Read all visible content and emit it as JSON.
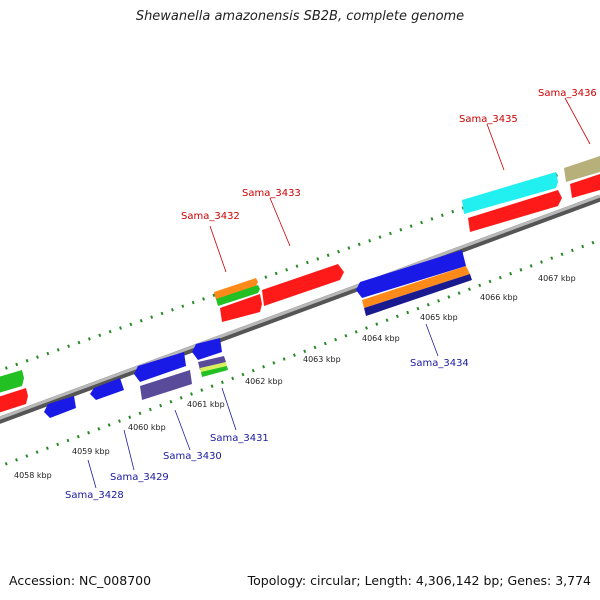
{
  "title": "Shewanella amazonensis SB2B, complete genome",
  "footer": {
    "accession": "Accession: NC_008700",
    "summary": "Topology: circular; Length: 4,306,142 bp; Genes: 3,774"
  },
  "kbp_labels": [
    "4058 kbp",
    "4059 kbp",
    "4060 kbp",
    "4061 kbp",
    "4062 kbp",
    "4063 kbp",
    "4064 kbp",
    "4065 kbp",
    "4066 kbp",
    "4067 kbp"
  ],
  "forward_genes": [
    "Sama_3432",
    "Sama_3433",
    "Sama_3435",
    "Sama_3436"
  ],
  "reverse_genes": [
    "Sama_3428",
    "Sama_3429",
    "Sama_3430",
    "Sama_3431",
    "Sama_3434"
  ],
  "colors": {
    "forward_cds": "#ff1a1a",
    "reverse_cds": "#1a1ae6",
    "backbone": "#9a9a9a",
    "ticks": "#2a8a2a"
  }
}
